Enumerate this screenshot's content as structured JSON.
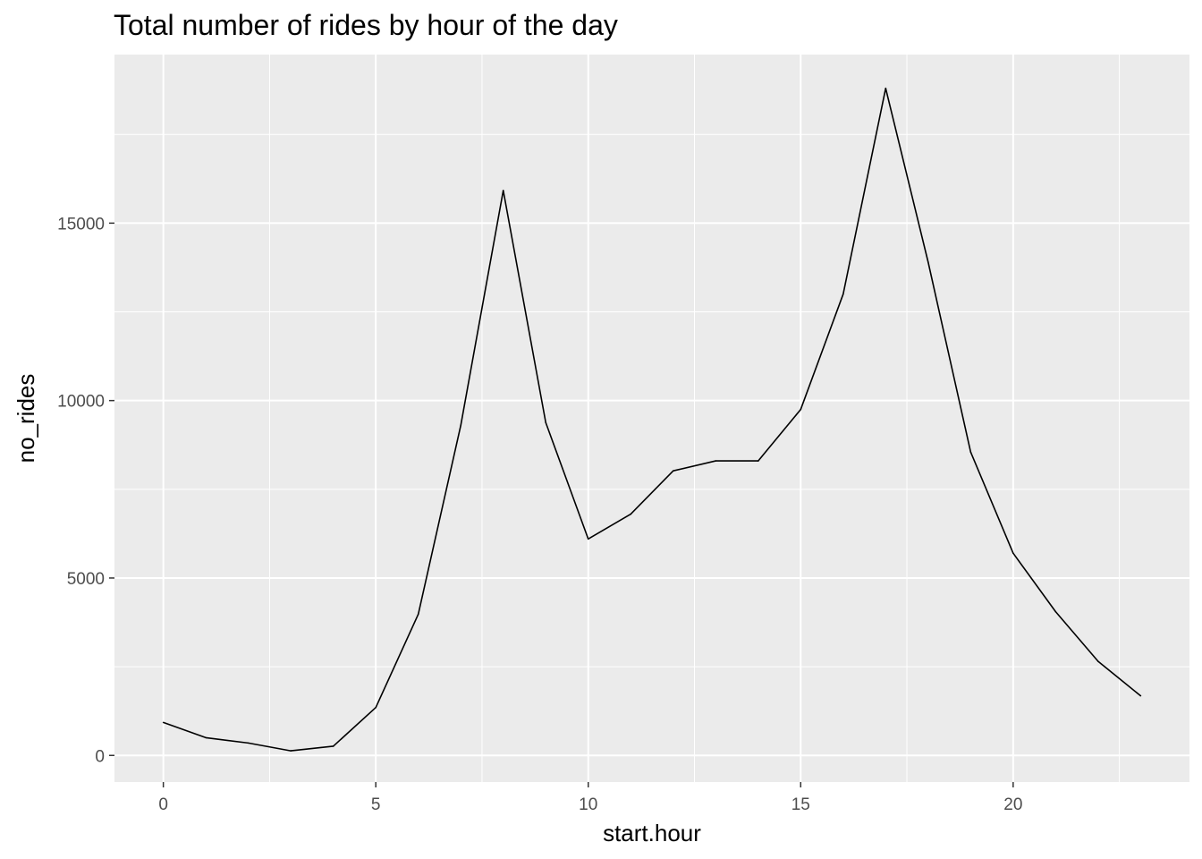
{
  "chart_data": {
    "type": "line",
    "title": "Total number of rides by hour of the day",
    "xlabel": "start.hour",
    "ylabel": "no_rides",
    "x": [
      0,
      1,
      2,
      3,
      4,
      5,
      6,
      7,
      8,
      9,
      10,
      11,
      12,
      13,
      14,
      15,
      16,
      17,
      18,
      19,
      20,
      21,
      22,
      23
    ],
    "series": [
      {
        "values": [
          930,
          500,
          350,
          130,
          260,
          1350,
          3980,
          9300,
          15920,
          9380,
          6100,
          6800,
          8020,
          8300,
          8300,
          9750,
          13000,
          18800,
          13900,
          8550,
          5700,
          4050,
          2650,
          1680
        ]
      }
    ],
    "xlim": [
      -1.15,
      24.15
    ],
    "ylim": [
      -750,
      19750
    ],
    "x_ticks": [
      0,
      5,
      10,
      15,
      20
    ],
    "x_tick_labels": [
      "0",
      "5",
      "10",
      "15",
      "20"
    ],
    "y_ticks": [
      0,
      5000,
      10000,
      15000
    ],
    "y_tick_labels": [
      "0",
      "5000",
      "10000",
      "15000"
    ],
    "grid": true,
    "legend": "none",
    "colors": {
      "panel_bg": "#ebebeb",
      "grid": "#ffffff",
      "line": "#000000",
      "tick_text": "#4d4d4d"
    }
  }
}
